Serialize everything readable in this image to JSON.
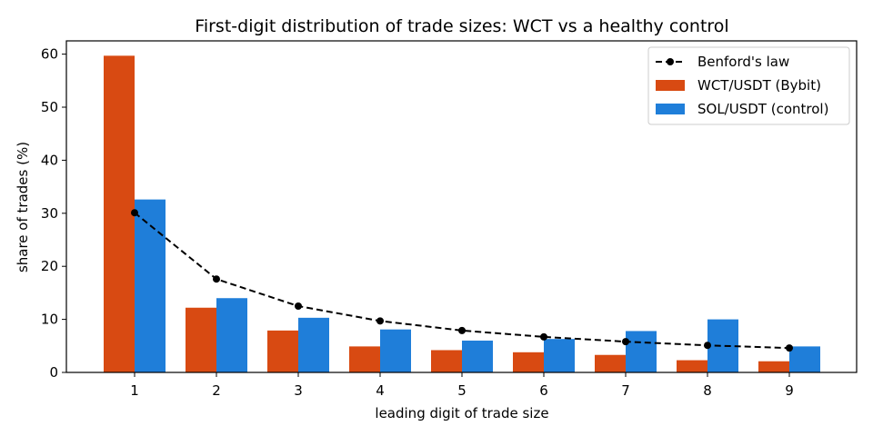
{
  "chart_data": {
    "type": "bar",
    "title": "First-digit distribution of trade sizes: WCT vs a healthy control",
    "xlabel": "leading digit of trade size",
    "ylabel": "share of trades (%)",
    "categories": [
      "1",
      "2",
      "3",
      "4",
      "5",
      "6",
      "7",
      "8",
      "9"
    ],
    "ylim": [
      0,
      62.5
    ],
    "yticks": [
      0,
      10,
      20,
      30,
      40,
      50,
      60
    ],
    "grid": false,
    "legend_position": "top-right",
    "series": [
      {
        "name": "WCT/USDT (Bybit)",
        "kind": "bar",
        "color": "#D84A12",
        "values": [
          59.7,
          12.2,
          7.9,
          4.9,
          4.2,
          3.8,
          3.3,
          2.3,
          2.1
        ]
      },
      {
        "name": "SOL/USDT (control)",
        "kind": "bar",
        "color": "#1F7ED9",
        "values": [
          32.6,
          14.0,
          10.3,
          8.1,
          6.0,
          6.3,
          7.8,
          10.0,
          4.9
        ]
      },
      {
        "name": "Benford's law",
        "kind": "line",
        "style": "dashed",
        "marker": "circle",
        "color": "#000000",
        "values": [
          30.1,
          17.6,
          12.5,
          9.7,
          7.9,
          6.7,
          5.8,
          5.1,
          4.6
        ]
      }
    ]
  }
}
